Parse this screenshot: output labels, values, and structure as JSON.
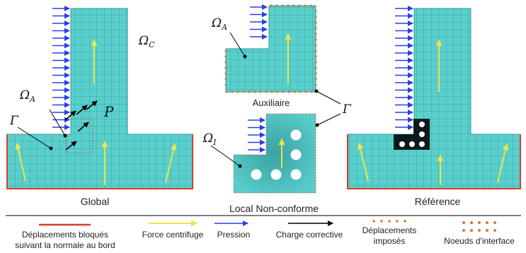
{
  "colors": {
    "mesh_fill": "#5ad0cc",
    "mesh_line": "#2f9aa0",
    "blocked": "#e03a2e",
    "centrifugal": "#f1e24a",
    "pressure": "#2b3de8",
    "corrective": "#000000",
    "imposed": "#e2703a",
    "interface": "#e2703a"
  },
  "panels": {
    "global": {
      "caption": "Global",
      "omega_c": "ΩC",
      "omega_a": "ΩA",
      "gamma": "Γ",
      "p_label": "P"
    },
    "local": {
      "caption": "Local Non-conforme",
      "aux_caption": "Auxiliaire",
      "omega_a": "ΩA",
      "omega_i": "ΩI",
      "gamma": "Γ"
    },
    "reference": {
      "caption": "Référence"
    }
  },
  "legend": {
    "blocked_line1": "Déplacements bloqués",
    "blocked_line2": "suivant la normale au bord",
    "centrifugal": "Force centrifuge",
    "pressure": "Pression",
    "corrective": "Charge corrective",
    "imposed_line1": "Déplacements",
    "imposed_line2": "imposés",
    "interface": "Noeuds d'interface"
  }
}
